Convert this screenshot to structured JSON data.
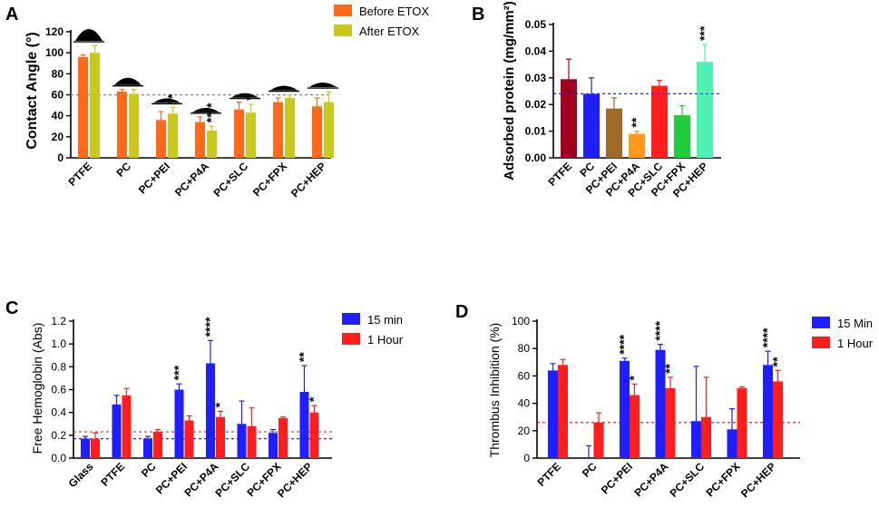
{
  "chart_data": [
    {
      "id": "A",
      "type": "bar",
      "panel_label": "A",
      "ylabel": "Contact Angle (°)",
      "ylim": [
        0,
        120
      ],
      "yticks": [
        0,
        20,
        40,
        60,
        80,
        100,
        120
      ],
      "categories": [
        "PTFE",
        "PC",
        "PC+PEI",
        "PC+P4A",
        "PC+SLC",
        "PC+FPX",
        "PC+HEP"
      ],
      "series": [
        {
          "name": "Before ETOX",
          "color": "#FF6A1A",
          "values": [
            96,
            63,
            36,
            34,
            46,
            53,
            49
          ],
          "errors": [
            2,
            2,
            8,
            5,
            7,
            4,
            8
          ]
        },
        {
          "name": "After ETOX",
          "color": "#C8C81E",
          "values": [
            100,
            61,
            42,
            26,
            43,
            57,
            53
          ],
          "errors": [
            7,
            4,
            6,
            4,
            8,
            3,
            10
          ]
        }
      ],
      "reference_line": {
        "value": 60,
        "color": "#808080"
      },
      "significance": [
        {
          "category": "PC+PEI",
          "series": 1,
          "label": "**"
        },
        {
          "category": "PC+P4A",
          "series": 1,
          "label": "****"
        },
        {
          "category": "PC+SLC",
          "series": 1,
          "label": "*"
        }
      ],
      "legend_position": "top-right"
    },
    {
      "id": "B",
      "type": "bar",
      "panel_label": "B",
      "ylabel": "Adsorbed protein (mg/mm²)",
      "ylim": [
        0,
        0.05
      ],
      "yticks": [
        "0.00",
        "0.01",
        "0.02",
        "0.03",
        "0.04",
        "0.05"
      ],
      "categories": [
        "PTFE",
        "PC",
        "PC+PEI",
        "PC+P4A",
        "PC+SLC",
        "PC+FPX",
        "PC+HEP"
      ],
      "series": [
        {
          "name": "Adsorbed protein",
          "values": [
            0.0295,
            0.024,
            0.0185,
            0.009,
            0.027,
            0.016,
            0.036
          ],
          "errors": [
            0.0075,
            0.006,
            0.004,
            0.001,
            0.002,
            0.0035,
            0.0065
          ],
          "colors": [
            "#A0001E",
            "#1E1EFF",
            "#A0692A",
            "#FF9A1E",
            "#FF1E1E",
            "#1ECC3C",
            "#4EF0B4"
          ]
        }
      ],
      "reference_line": {
        "value": 0.024,
        "color": "#2020E0"
      },
      "significance": [
        {
          "category": "PC+P4A",
          "series": 0,
          "label": "**"
        },
        {
          "category": "PC+HEP",
          "series": 0,
          "label": "***"
        }
      ]
    },
    {
      "id": "C",
      "type": "bar",
      "panel_label": "C",
      "ylabel": "Free Hemoglobin (Abs)",
      "ylim": [
        0,
        1.2
      ],
      "yticks": [
        "0.0",
        "0.2",
        "0.4",
        "0.6",
        "0.8",
        "1.0",
        "1.2"
      ],
      "categories": [
        "Glass",
        "PTFE",
        "PC",
        "PC+PEI",
        "PC+P4A",
        "PC+SLC",
        "PC+FPX",
        "PC+HEP"
      ],
      "series": [
        {
          "name": "15 min",
          "color": "#1E1EFF",
          "values": [
            0.17,
            0.47,
            0.17,
            0.6,
            0.83,
            0.3,
            0.22,
            0.58
          ],
          "errors": [
            0.02,
            0.08,
            0.02,
            0.05,
            0.2,
            0.2,
            0.03,
            0.23
          ]
        },
        {
          "name": "1 Hour",
          "color": "#FF1E1E",
          "values": [
            0.17,
            0.55,
            0.23,
            0.33,
            0.36,
            0.28,
            0.35,
            0.4
          ],
          "errors": [
            0.05,
            0.06,
            0.02,
            0.04,
            0.05,
            0.16,
            0.01,
            0.06
          ]
        }
      ],
      "reference_lines": [
        {
          "value": 0.23,
          "color": "#FF1E1E"
        },
        {
          "value": 0.17,
          "color": "#1E1EFF"
        }
      ],
      "significance": [
        {
          "category": "PC+PEI",
          "series": 0,
          "label": "***"
        },
        {
          "category": "PC+P4A",
          "series": 0,
          "label": "****"
        },
        {
          "category": "PC+P4A",
          "series": 1,
          "label": "*"
        },
        {
          "category": "PC+HEP",
          "series": 0,
          "label": "**"
        },
        {
          "category": "PC+HEP",
          "series": 1,
          "label": "*"
        }
      ],
      "legend_position": "top-right"
    },
    {
      "id": "D",
      "type": "bar",
      "panel_label": "D",
      "ylabel": "Thrombus Inhibition (%)",
      "ylim": [
        0,
        100
      ],
      "yticks": [
        0,
        20,
        40,
        60,
        80,
        100
      ],
      "categories": [
        "PTFE",
        "PC",
        "PC+PEI",
        "PC+P4A",
        "PC+SLC",
        "PC+FPX",
        "PC+HEP"
      ],
      "series": [
        {
          "name": "15 Min",
          "color": "#1E1EFF",
          "values": [
            64,
            0,
            71,
            79,
            27,
            21,
            68
          ],
          "errors": [
            5,
            9,
            2,
            4,
            40,
            15,
            10
          ]
        },
        {
          "name": "1 Hour",
          "color": "#FF1E1E",
          "values": [
            68,
            26,
            46,
            51,
            30,
            51,
            56
          ],
          "errors": [
            4,
            7,
            8,
            8,
            29,
            1,
            8
          ]
        }
      ],
      "reference_line": {
        "value": 26,
        "color": "#FF1E1E"
      },
      "significance": [
        {
          "category": "PC+PEI",
          "series": 0,
          "label": "****"
        },
        {
          "category": "PC+PEI",
          "series": 1,
          "label": "*"
        },
        {
          "category": "PC+P4A",
          "series": 0,
          "label": "****"
        },
        {
          "category": "PC+P4A",
          "series": 1,
          "label": "**"
        },
        {
          "category": "PC+HEP",
          "series": 0,
          "label": "****"
        },
        {
          "category": "PC+HEP",
          "series": 1,
          "label": "**"
        }
      ],
      "legend_position": "top-right"
    }
  ]
}
